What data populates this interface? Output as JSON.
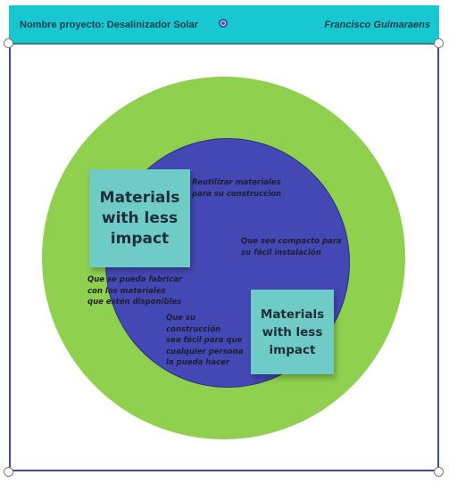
{
  "header": {
    "project_title": "Nombre proyecto: Desalinizador Solar",
    "author": "Francisco Guimaraens",
    "background_color": "#18c8d0"
  },
  "diagram": {
    "outer_circle_color": "#8fd04f",
    "inner_circle_color": "#4348b4",
    "sticky_color": "#6fcbc6",
    "sticky_notes": [
      {
        "text": "Materials with less impact"
      },
      {
        "text": "Materials with less impact"
      }
    ],
    "text_notes": [
      {
        "text": "Reutilizar materiales\npara su construccion"
      },
      {
        "text": "Que sea compacto para\nsu fácil instalación"
      },
      {
        "text": "Que se pueda fabricar\ncon los materiales\nque estén disponibles"
      },
      {
        "text": "Que su\nconstrucción\nsea fácil para que\ncualquier persona\nla pueda hacer"
      }
    ]
  },
  "icons": {
    "rotate_handle": "rotate-handle-icon",
    "resize_handles": "resize-handle-icon"
  }
}
